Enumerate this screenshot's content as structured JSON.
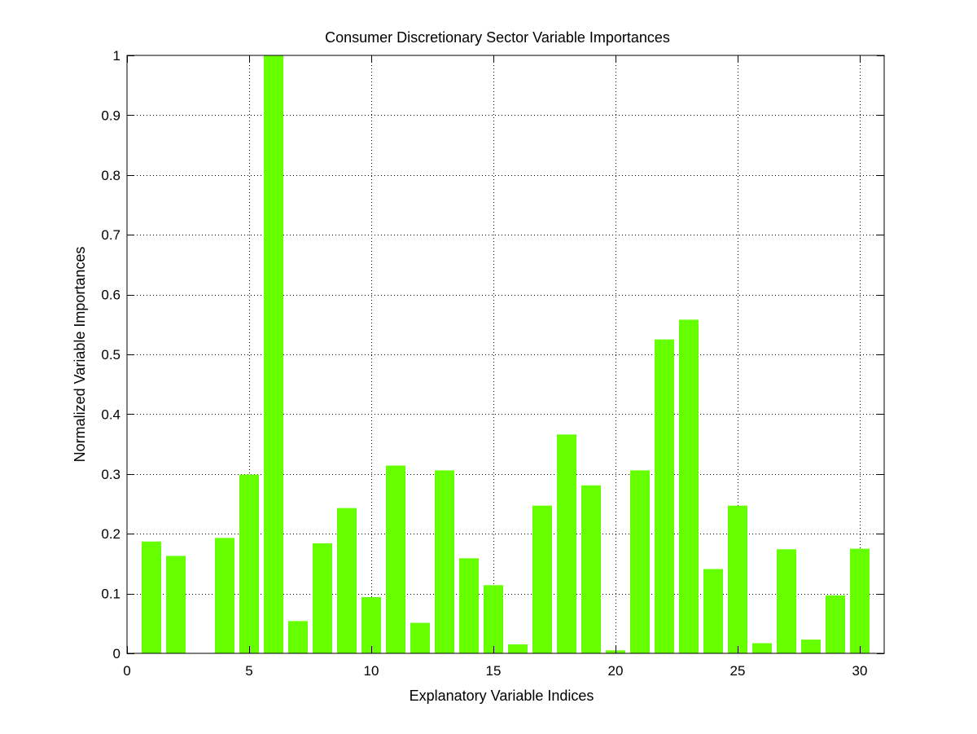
{
  "chart_data": {
    "type": "bar",
    "title": "Consumer Discretionary Sector Variable Importances",
    "xlabel": "Explanatory Variable Indices",
    "ylabel": "Normalized Variable Importances",
    "x": [
      1,
      2,
      3,
      4,
      5,
      6,
      7,
      8,
      9,
      10,
      11,
      12,
      13,
      14,
      15,
      16,
      17,
      18,
      19,
      20,
      21,
      22,
      23,
      24,
      25,
      26,
      27,
      28,
      29,
      30
    ],
    "values": [
      0.187,
      0.163,
      0.0,
      0.193,
      0.299,
      1.0,
      0.054,
      0.184,
      0.243,
      0.094,
      0.314,
      0.051,
      0.306,
      0.159,
      0.114,
      0.015,
      0.247,
      0.366,
      0.281,
      0.005,
      0.306,
      0.525,
      0.558,
      0.141,
      0.247,
      0.017,
      0.174,
      0.023,
      0.097,
      0.175
    ],
    "xlim": [
      0,
      31
    ],
    "ylim": [
      0,
      1
    ],
    "xticks": [
      0,
      5,
      10,
      15,
      20,
      25,
      30
    ],
    "yticks": [
      0,
      0.1,
      0.2,
      0.3,
      0.4,
      0.5,
      0.6,
      0.7,
      0.8,
      0.9,
      1
    ],
    "xtick_labels": [
      "0",
      "5",
      "10",
      "15",
      "20",
      "25",
      "30"
    ],
    "ytick_labels": [
      "0",
      "0.1",
      "0.2",
      "0.3",
      "0.4",
      "0.5",
      "0.6",
      "0.7",
      "0.8",
      "0.9",
      "1"
    ],
    "grid": true,
    "bar_color": "#66ff00"
  }
}
